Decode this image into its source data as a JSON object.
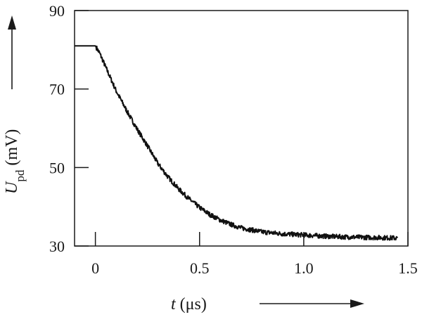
{
  "chart_data": {
    "type": "line",
    "title": "",
    "xlabel": {
      "var": "t",
      "unit": " (μs)"
    },
    "ylabel": {
      "var": "U",
      "sub": "pd",
      "unit": " (mV)"
    },
    "xlim": [
      -0.1,
      1.5
    ],
    "ylim": [
      30,
      90
    ],
    "x_ticks": [
      0,
      0.5,
      1.0,
      1.5
    ],
    "x_tick_labels": [
      "0",
      "0.5",
      "1.0",
      "1.5"
    ],
    "y_ticks": [
      30,
      50,
      70,
      90
    ],
    "y_tick_labels": [
      "30",
      "50",
      "70",
      "90"
    ],
    "grid": false,
    "legend": "none",
    "series": [
      {
        "x": [
          -0.1,
          0.0,
          0.02,
          0.05,
          0.1,
          0.15,
          0.2,
          0.25,
          0.3,
          0.35,
          0.4,
          0.45,
          0.5,
          0.55,
          0.6,
          0.65,
          0.7,
          0.8,
          0.9,
          1.0,
          1.1,
          1.2,
          1.3,
          1.4,
          1.45
        ],
        "y": [
          81,
          81,
          79.2,
          75.5,
          69.5,
          64.5,
          59.8,
          55.5,
          51.0,
          47.5,
          44.5,
          42.0,
          39.8,
          38.0,
          36.6,
          35.5,
          34.6,
          33.6,
          33.1,
          32.8,
          32.5,
          32.3,
          32.2,
          32.1,
          32.0
        ],
        "noise_amplitude": 0.6,
        "color": "#111111"
      }
    ]
  }
}
